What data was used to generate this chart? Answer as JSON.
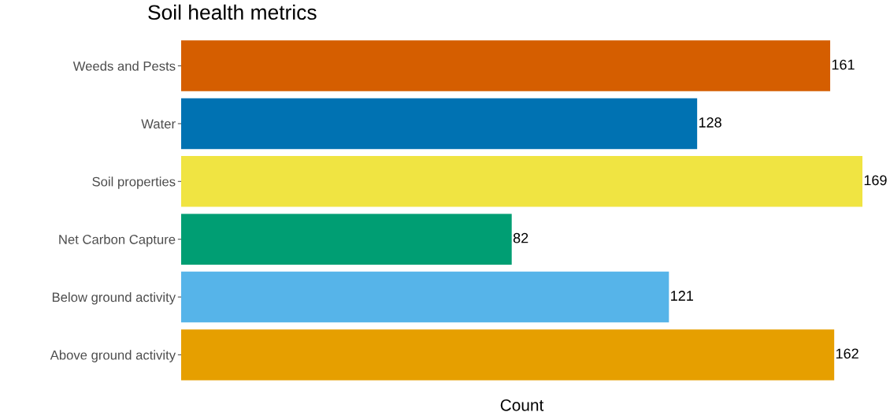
{
  "chart_data": {
    "type": "bar",
    "orientation": "horizontal",
    "title": "Soil health metrics",
    "xlabel": "Count",
    "categories": [
      "Weeds and Pests",
      "Water",
      "Soil properties",
      "Net Carbon Capture",
      "Below ground activity",
      "Above ground activity"
    ],
    "values": [
      161,
      128,
      169,
      82,
      121,
      162
    ],
    "colors": [
      "#d55e00",
      "#0072b2",
      "#f0e442",
      "#009e73",
      "#56b4e9",
      "#e69f00"
    ],
    "data_labels": true,
    "grid": false,
    "legend": false,
    "tick_labels": "y"
  }
}
